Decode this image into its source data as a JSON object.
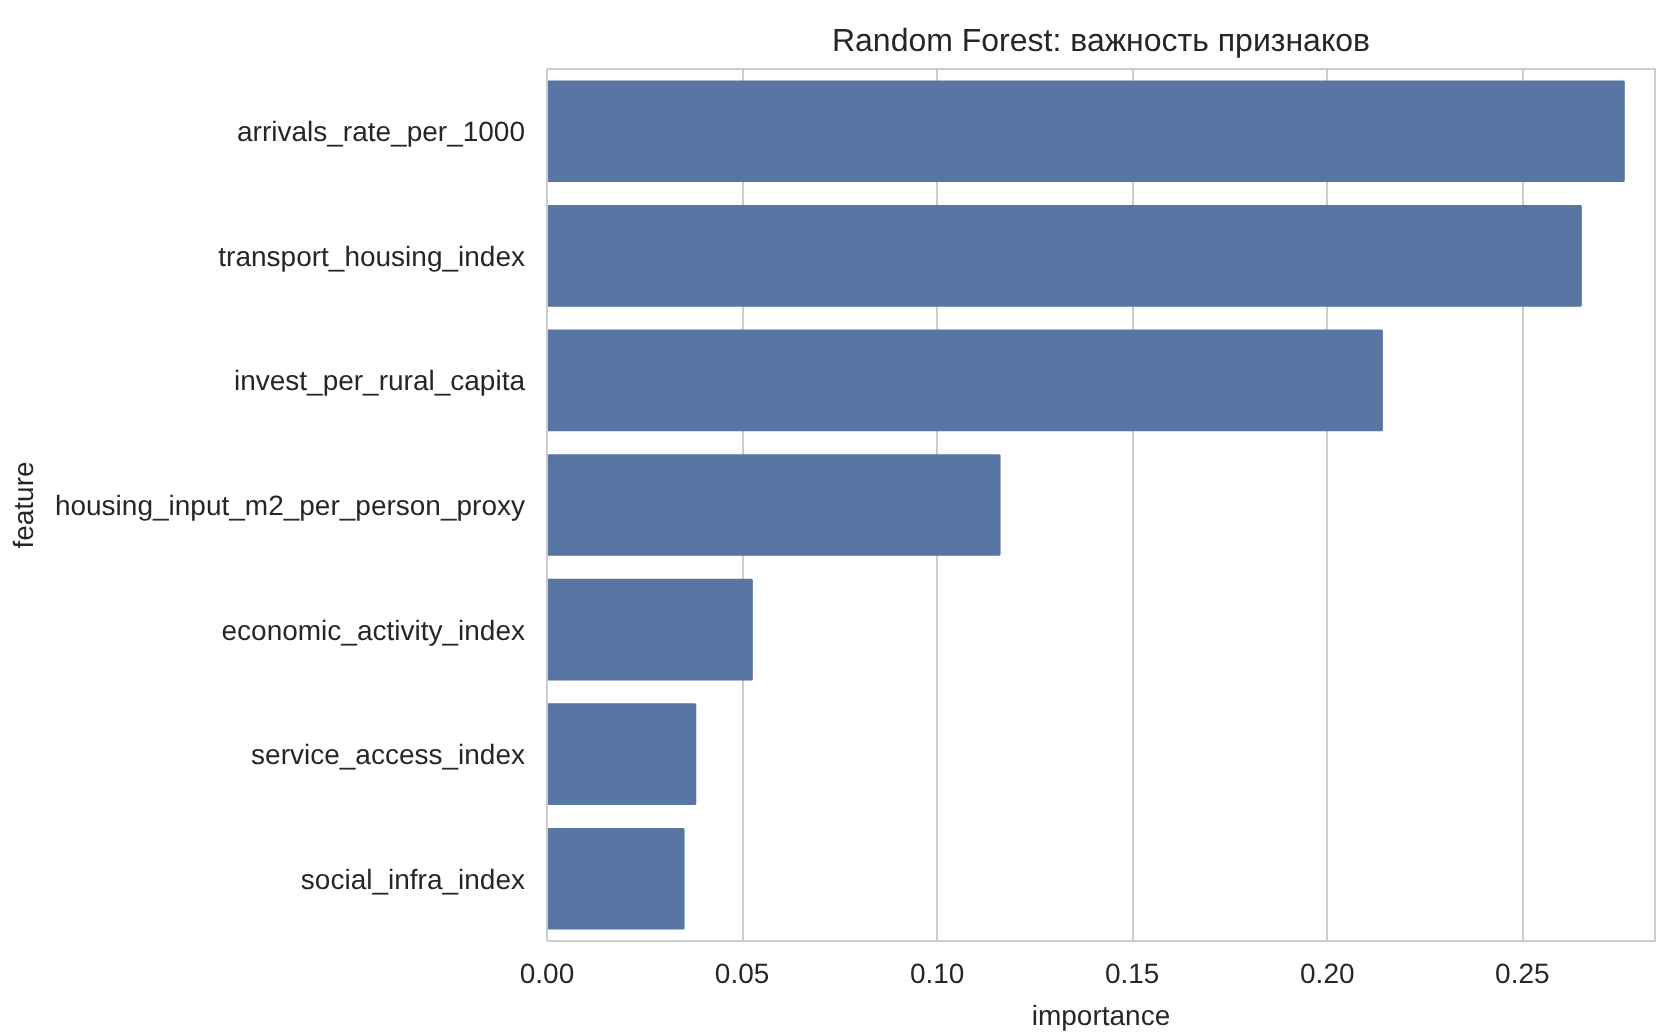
{
  "chart_data": {
    "type": "bar",
    "orientation": "horizontal",
    "title": "Random Forest: важность признаков",
    "xlabel": "importance",
    "ylabel": "feature",
    "categories": [
      "arrivals_rate_per_1000",
      "transport_housing_index",
      "invest_per_rural_capita",
      "housing_input_m2_per_person_proxy",
      "economic_activity_index",
      "service_access_index",
      "social_infra_index"
    ],
    "values": [
      0.276,
      0.265,
      0.214,
      0.116,
      0.0525,
      0.038,
      0.035
    ],
    "color": "#5875a4",
    "xlim": [
      0,
      0.284
    ],
    "xticks": [
      {
        "value": 0,
        "label": "0.00"
      },
      {
        "value": 0.05,
        "label": "0.05"
      },
      {
        "value": 0.1,
        "label": "0.10"
      },
      {
        "value": 0.15,
        "label": "0.15"
      },
      {
        "value": 0.2,
        "label": "0.20"
      },
      {
        "value": 0.25,
        "label": "0.25"
      }
    ],
    "grid": "x"
  }
}
